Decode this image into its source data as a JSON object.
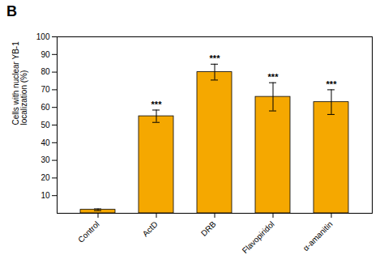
{
  "chart_data": {
    "type": "bar",
    "title": "B",
    "categories": [
      "Control",
      "ActD",
      "DRB",
      "Flavopiridol",
      "α-amanitin"
    ],
    "values": [
      2.0,
      55.0,
      80.0,
      66.0,
      63.0
    ],
    "errors": [
      0.5,
      3.5,
      4.5,
      8.0,
      7.0
    ],
    "significance": [
      null,
      "***",
      "***",
      "***",
      "***"
    ],
    "color": "#F5A800",
    "ylabel": "Cells with nuclear YB-1\nlocalization (%)",
    "ylim": [
      0,
      100
    ],
    "yticks": [
      10,
      20,
      30,
      40,
      50,
      60,
      70,
      80,
      90,
      100
    ],
    "grid": false
  }
}
